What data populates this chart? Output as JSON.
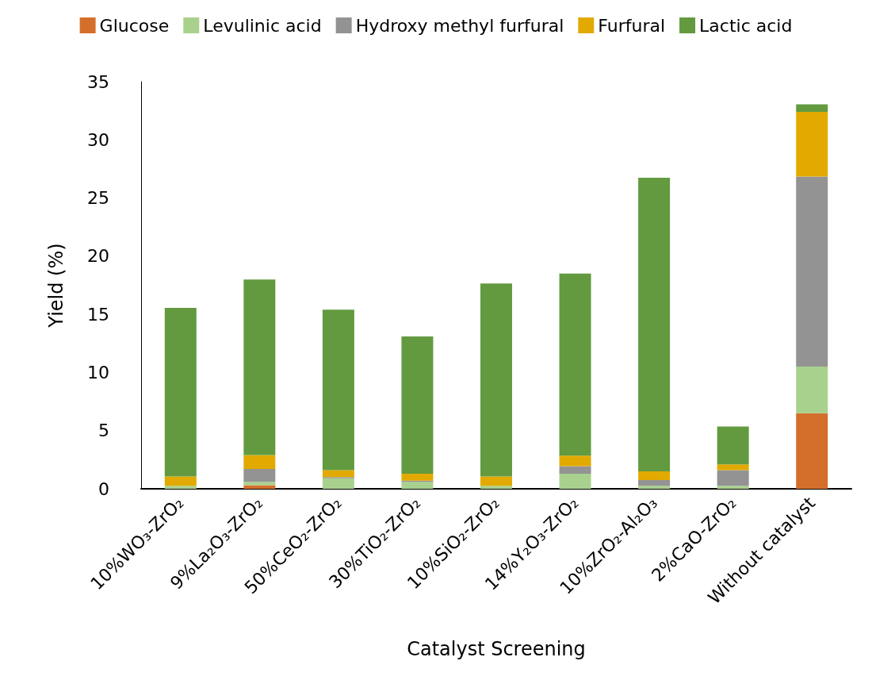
{
  "chart_data": {
    "type": "bar",
    "stacked": true,
    "xlabel": "Catalyst Screening",
    "ylabel": "Yield (%)",
    "categories": [
      "10%WO₃-ZrO₂",
      "9%La₂O₃-ZrO₂",
      "50%CeO₂-ZrO₂",
      "30%TiO₂-ZrO₂",
      "10%SiO₂-ZrO₂",
      "14%Y₂O₃-ZrO₂",
      "10%ZrO₂-Al₂O₃",
      "2%CaO-ZrO₂",
      "Without catalyst"
    ],
    "series": [
      {
        "name": "Glucose",
        "color": "#d46f2b",
        "values": [
          0,
          0.3,
          0,
          0,
          0,
          0,
          0,
          0,
          6.5
        ]
      },
      {
        "name": "Levulinic acid",
        "color": "#a9d18e",
        "values": [
          0.25,
          0.3,
          0.9,
          0.6,
          0.25,
          1.3,
          0.25,
          0.25,
          4.0
        ]
      },
      {
        "name": "Hydroxy methyl furfural",
        "color": "#939393",
        "values": [
          0,
          1.1,
          0.1,
          0.1,
          0,
          0.65,
          0.5,
          1.35,
          16.35
        ]
      },
      {
        "name": "Furfural",
        "color": "#e2aa00",
        "values": [
          0.8,
          1.2,
          0.6,
          0.6,
          0.8,
          0.9,
          0.75,
          0.5,
          5.55
        ]
      },
      {
        "name": "Lactic acid",
        "color": "#639a3f",
        "values": [
          14.5,
          15.1,
          13.8,
          11.8,
          16.6,
          15.65,
          25.25,
          3.25,
          0.65
        ]
      }
    ],
    "ylim": [
      0,
      35
    ],
    "yticks": [
      0,
      5,
      10,
      15,
      20,
      25,
      30,
      35
    ],
    "grid": false,
    "legend": "top"
  }
}
